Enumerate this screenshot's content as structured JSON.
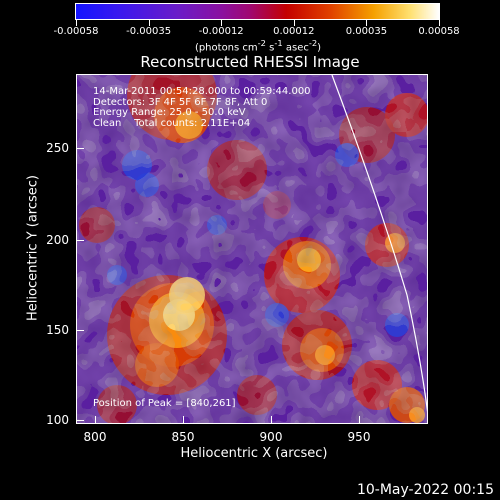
{
  "colorbar": {
    "tick_labels": [
      "-0.00058",
      "-0.00035",
      "-0.00012",
      "0.00012",
      "0.00035",
      "0.00058"
    ],
    "unit_html": "(photons cm<sup>-2</sup> s<sup>-1</sup> asec<sup>-2</sup>)"
  },
  "title": "Reconstructed RHESSI Image",
  "info_lines": [
    "14-Mar-2011 00:54:28.000 to 00:59:44.000",
    "Detectors: 3F 4F 5F 6F 7F 8F, Att 0",
    "Energy Range: 25.0 - 50.0 keV",
    "Clean    Total counts: 2.11E+04"
  ],
  "peak_text": "Position of Peak = [840,261]",
  "x_axis": {
    "title": "Heliocentric X (arcsec)",
    "ticks": [
      "800",
      "850",
      "900",
      "950"
    ]
  },
  "y_axis": {
    "title": "Heliocentric Y (arcsec)",
    "ticks": [
      "100",
      "150",
      "200",
      "250"
    ]
  },
  "date_stamp": "10-May-2022 00:15"
}
